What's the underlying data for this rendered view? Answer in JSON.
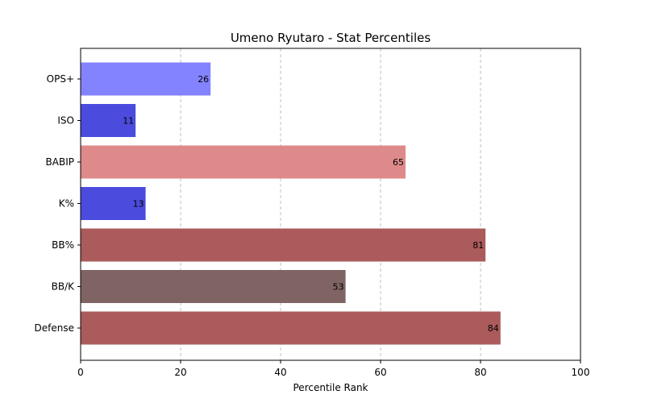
{
  "chart_data": {
    "type": "bar",
    "orientation": "horizontal",
    "title": "Umeno Ryutaro - Stat Percentiles",
    "xlabel": "Percentile Rank",
    "ylabel": "",
    "xlim": [
      0,
      100
    ],
    "xticks": [
      0,
      20,
      40,
      60,
      80,
      100
    ],
    "grid": "x-dashed",
    "categories": [
      "OPS+",
      "ISO",
      "BABIP",
      "K%",
      "BB%",
      "BB/K",
      "Defense"
    ],
    "values": [
      26,
      11,
      65,
      13,
      81,
      53,
      84
    ],
    "colors": [
      "#8383ff",
      "#4b4bde",
      "#de8a8a",
      "#4b4bde",
      "#ab5b5b",
      "#806464",
      "#ab5b5b"
    ]
  }
}
